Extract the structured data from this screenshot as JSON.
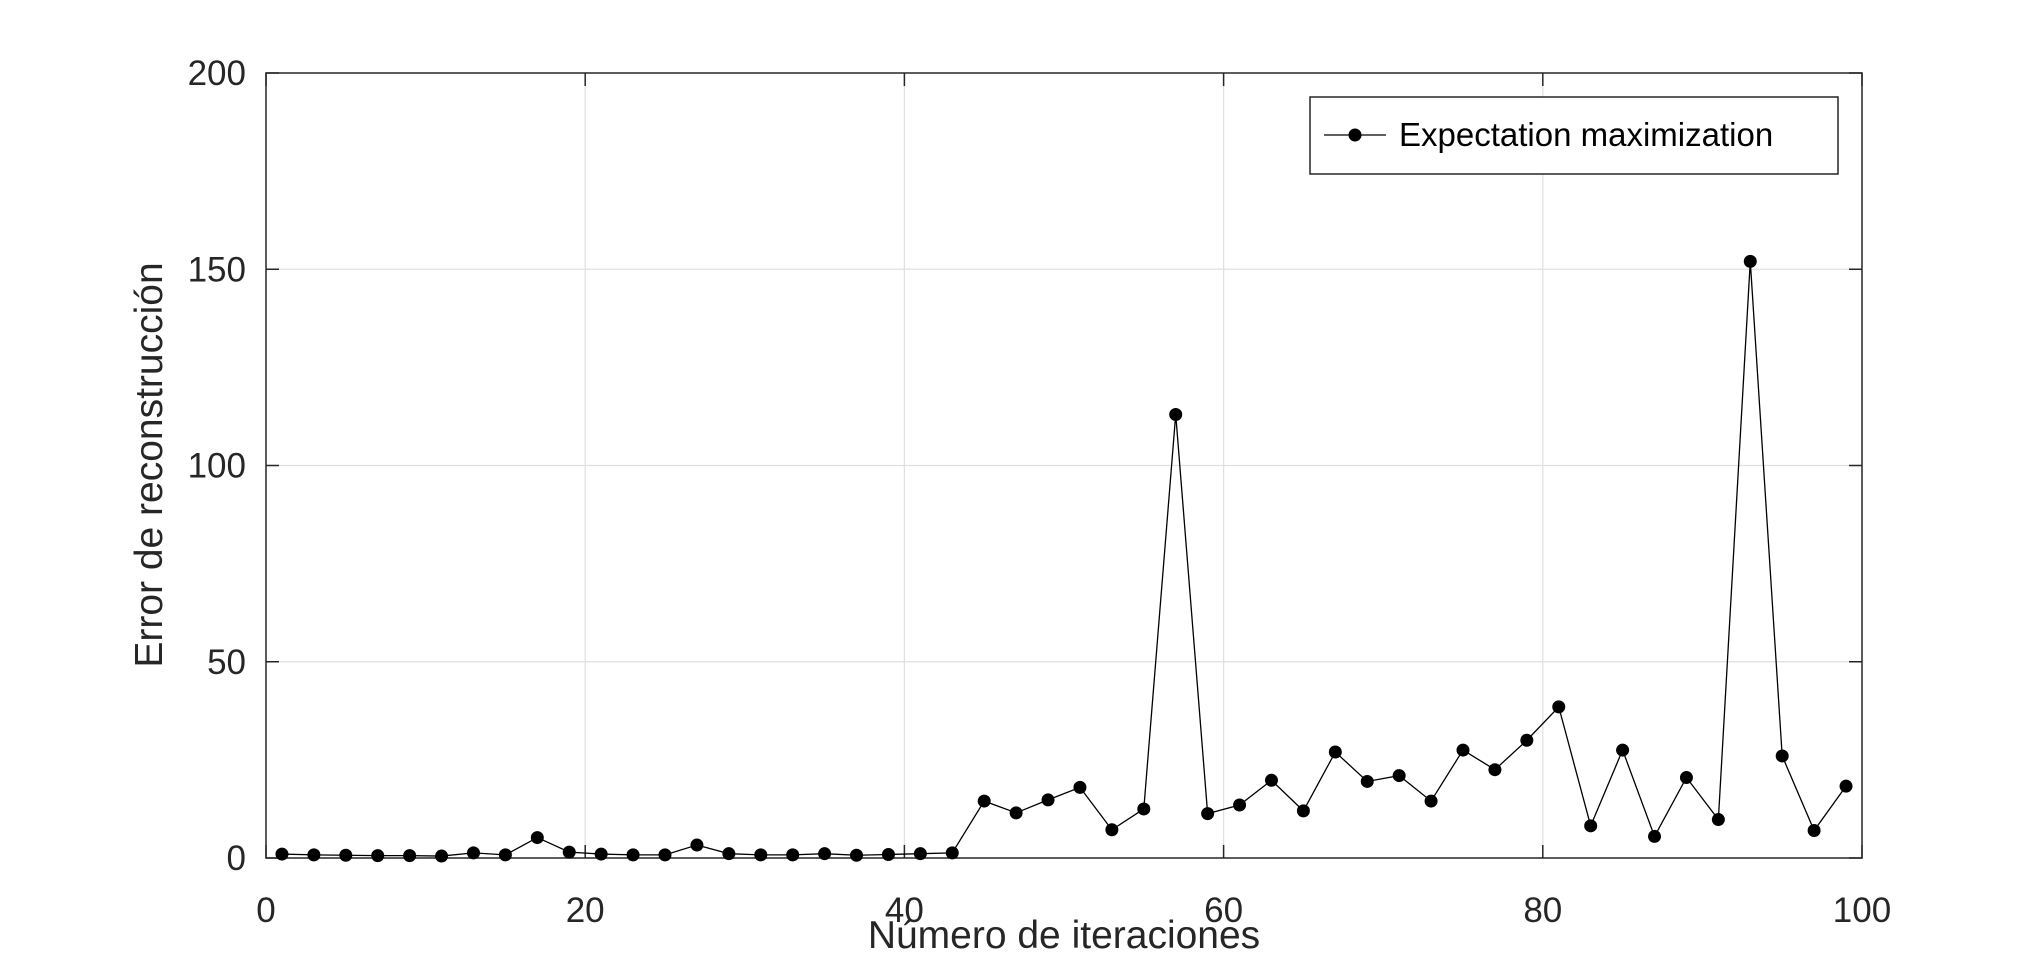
{
  "chart_data": {
    "type": "line",
    "xlabel": "Número de iteraciones",
    "ylabel": "Error de reconstrucción",
    "xlim": [
      0,
      100
    ],
    "ylim": [
      0,
      200
    ],
    "xticks": [
      0,
      20,
      40,
      60,
      80,
      100
    ],
    "yticks": [
      0,
      50,
      100,
      150,
      200
    ],
    "grid": true,
    "legend_position": "top-right",
    "series": [
      {
        "name": "Expectation maximization",
        "color": "#000000",
        "marker": "filled-circle",
        "x": [
          1,
          3,
          5,
          7,
          9,
          11,
          13,
          15,
          17,
          19,
          21,
          23,
          25,
          27,
          29,
          31,
          33,
          35,
          37,
          39,
          41,
          43,
          45,
          47,
          49,
          51,
          53,
          55,
          57,
          59,
          61,
          63,
          65,
          67,
          69,
          71,
          73,
          75,
          77,
          79,
          81,
          83,
          85,
          87,
          89,
          91,
          93,
          95,
          97,
          99
        ],
        "y": [
          1,
          0.8,
          0.7,
          0.6,
          0.6,
          0.5,
          1.3,
          0.8,
          5.2,
          1.5,
          1.0,
          0.8,
          0.8,
          3.3,
          1.1,
          0.8,
          0.8,
          1.1,
          0.7,
          0.9,
          1.1,
          1.3,
          14.5,
          11.5,
          14.8,
          18,
          7.2,
          12.5,
          113,
          11.3,
          13.5,
          19.8,
          12,
          27,
          19.5,
          21,
          14.5,
          27.5,
          22.5,
          30,
          38.5,
          8.2,
          27.5,
          5.5,
          20.5,
          9.8,
          152,
          26,
          7,
          18.3
        ]
      }
    ]
  }
}
